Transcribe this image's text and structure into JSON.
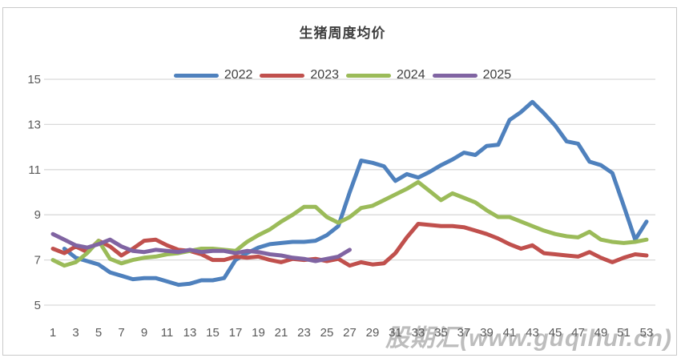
{
  "watermark": {
    "text": "股期汇(www.guqihui.cn)"
  },
  "colors": {
    "grid": "#d9d9d9",
    "axis_label": "#595959",
    "title": "#3f3f3f",
    "border": "#c9c9c9",
    "watermark": "#bdbdbd"
  },
  "chart_data": {
    "type": "line",
    "title": "生猪周度均价",
    "xlabel": "",
    "ylabel": "",
    "x_unit": "week",
    "x_range": [
      1,
      53
    ],
    "x_tick_labels": [
      1,
      3,
      5,
      7,
      9,
      11,
      13,
      15,
      17,
      19,
      21,
      23,
      25,
      27,
      29,
      31,
      33,
      35,
      37,
      39,
      41,
      43,
      45,
      47,
      49,
      51,
      53
    ],
    "ylim": [
      5,
      15
    ],
    "y_ticks": [
      5,
      7,
      9,
      11,
      13,
      15
    ],
    "grid": "horizontal",
    "legend_position": "top",
    "series": [
      {
        "name": "2022",
        "color": "#4F81BD",
        "values": [
          null,
          7.5,
          7.1,
          6.95,
          6.8,
          6.45,
          6.3,
          6.15,
          6.2,
          6.2,
          6.05,
          5.9,
          5.95,
          6.1,
          6.1,
          6.2,
          7.0,
          7.3,
          7.55,
          7.7,
          7.75,
          7.8,
          7.8,
          7.85,
          8.1,
          8.5,
          10.0,
          11.4,
          11.3,
          11.15,
          10.5,
          10.8,
          10.65,
          10.9,
          11.2,
          11.45,
          11.75,
          11.65,
          12.05,
          12.1,
          13.2,
          13.55,
          14.0,
          13.5,
          12.95,
          12.25,
          12.15,
          11.35,
          11.2,
          10.85,
          9.4,
          7.9,
          8.7
        ]
      },
      {
        "name": "2023",
        "color": "#C0504D",
        "values": [
          7.5,
          7.3,
          7.6,
          7.35,
          7.85,
          7.6,
          7.2,
          7.5,
          7.85,
          7.9,
          7.65,
          7.45,
          7.4,
          7.25,
          7.0,
          7.0,
          7.15,
          7.1,
          7.15,
          7.0,
          6.9,
          7.05,
          7.0,
          7.05,
          6.95,
          7.05,
          6.75,
          6.9,
          6.8,
          6.85,
          7.3,
          8.0,
          8.6,
          8.55,
          8.5,
          8.5,
          8.45,
          8.3,
          8.15,
          7.95,
          7.7,
          7.5,
          7.65,
          7.3,
          7.25,
          7.2,
          7.15,
          7.35,
          7.1,
          6.9,
          7.1,
          7.25,
          7.2
        ]
      },
      {
        "name": "2024",
        "color": "#9BBB59",
        "values": [
          7.0,
          6.75,
          6.9,
          7.3,
          7.85,
          7.05,
          6.85,
          7.0,
          7.1,
          7.15,
          7.25,
          7.3,
          7.4,
          7.5,
          7.5,
          7.45,
          7.4,
          7.8,
          8.1,
          8.35,
          8.7,
          9.0,
          9.35,
          9.35,
          8.9,
          8.65,
          8.9,
          9.3,
          9.4,
          9.65,
          9.9,
          10.15,
          10.45,
          10.05,
          9.65,
          9.95,
          9.75,
          9.55,
          9.2,
          8.9,
          8.9,
          8.7,
          8.5,
          8.3,
          8.15,
          8.05,
          8.0,
          8.25,
          7.9,
          7.8,
          7.75,
          7.8,
          7.9
        ]
      },
      {
        "name": "2025",
        "color": "#8064A2",
        "values": [
          8.15,
          7.9,
          7.65,
          7.55,
          7.7,
          7.9,
          7.6,
          7.4,
          7.35,
          7.45,
          7.4,
          7.35,
          7.45,
          7.35,
          7.4,
          7.4,
          7.3,
          7.4,
          7.35,
          7.25,
          7.2,
          7.1,
          7.05,
          6.95,
          7.05,
          7.15,
          7.45
        ]
      }
    ]
  }
}
